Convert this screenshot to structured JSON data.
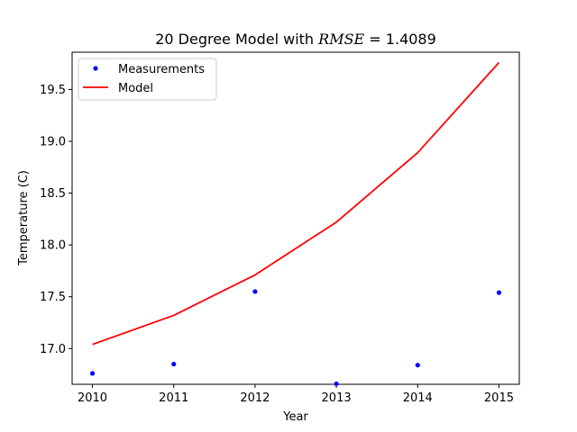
{
  "chart_data": {
    "type": "line",
    "title_prefix": "20 Degree Model with ",
    "title_math": "RMSE",
    "title_eq": " =  ",
    "title_value": "1.4089",
    "xlabel": "Year",
    "ylabel": "Temperature (C)",
    "x": [
      2010,
      2011,
      2012,
      2013,
      2014,
      2015
    ],
    "x_tick_labels": [
      "2010",
      "2011",
      "2012",
      "2013",
      "2014",
      "2015"
    ],
    "y_ticks": [
      17.0,
      17.5,
      18.0,
      18.5,
      19.0,
      19.5
    ],
    "y_tick_labels": [
      "17.0",
      "17.5",
      "18.0",
      "18.5",
      "19.0",
      "19.5"
    ],
    "xlim": [
      2009.75,
      2015.25
    ],
    "ylim": [
      16.655,
      19.86
    ],
    "grid": false,
    "legend_position": "top-left",
    "series": [
      {
        "name": "Measurements",
        "style": "scatter",
        "color": "#0000ff",
        "values": [
          16.76,
          16.85,
          17.55,
          16.66,
          16.84,
          17.54
        ]
      },
      {
        "name": "Model",
        "style": "line",
        "color": "#ff0000",
        "values": [
          17.04,
          17.32,
          17.71,
          18.22,
          18.89,
          19.76
        ]
      }
    ]
  }
}
